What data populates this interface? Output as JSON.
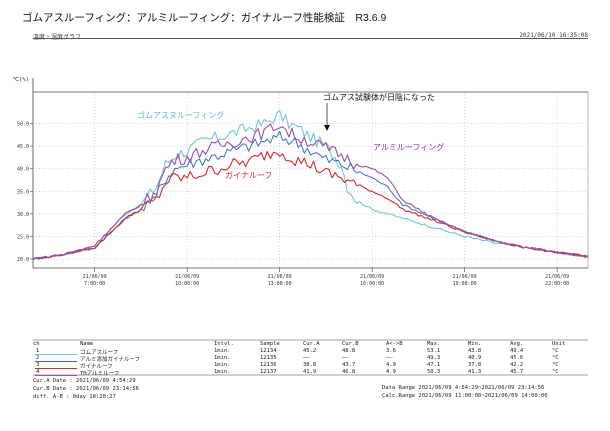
{
  "page_title": "ゴムアスルーフィング：アルミルーフィング：ガイナルーフ性能検証　R3.6.9",
  "graph": {
    "title": "温度・湿度グラフ",
    "timestamp": "2021/06/10 16:35:08",
    "y_unit": "℃(%)"
  },
  "annotations": {
    "gomu_label": "ゴムアスヌルーフィング",
    "alumi_label": "アルミルーフィング",
    "gaina_label": "ガイナルーフ",
    "shade_note": "ゴムアス試験体が日陰になった"
  },
  "colors": {
    "gomu": "#6ec8d6",
    "alumi": "#9b4fa6",
    "gaina": "#d42a2a",
    "alumi_gaina": "#3a6fc4",
    "text_gomu": "#5ab8cc",
    "text_alumi": "#8e3aa0",
    "text_gaina": "#d42a2a"
  },
  "chart_data": {
    "type": "line",
    "ylim": [
      18,
      57
    ],
    "y_ticks": [
      "20.0",
      "25.0",
      "30.0",
      "35.0",
      "40.0",
      "45.0",
      "50.0"
    ],
    "x_range_hours": [
      "2021/06/09 05:00",
      "2021/06/09 23:00"
    ],
    "x_ticks": [
      {
        "date": "21/06/09",
        "time": "7:00:00"
      },
      {
        "date": "21/06/09",
        "time": "10:00:00"
      },
      {
        "date": "21/06/09",
        "time": "13:00:00"
      },
      {
        "date": "21/06/09",
        "time": "16:00:00"
      },
      {
        "date": "21/06/09",
        "time": "19:00:00"
      },
      {
        "date": "21/06/09",
        "time": "22:00:00"
      }
    ],
    "series": [
      {
        "name": "ゴムアスルーフィング",
        "x": [
          5,
          6,
          7,
          8,
          8.5,
          9,
          9.3,
          9.6,
          10,
          10.5,
          11,
          11.5,
          12,
          12.5,
          13,
          13.3,
          13.6,
          14,
          14.5,
          15,
          15.2,
          15.5,
          16,
          17,
          18,
          19,
          20,
          21,
          22,
          23
        ],
        "y": [
          20,
          21,
          23,
          30,
          32,
          36,
          41,
          43,
          44,
          46,
          47,
          48,
          49,
          50,
          52,
          50,
          49,
          47,
          45,
          41,
          36,
          33,
          31,
          29,
          27,
          25,
          23.5,
          22.5,
          21.5,
          20.5
        ]
      },
      {
        "name": "アルミ添加ガイナルーフ",
        "x": [
          5,
          6,
          7,
          8,
          8.5,
          9,
          9.3,
          9.6,
          10,
          10.5,
          11,
          11.5,
          12,
          12.5,
          13,
          13.5,
          14,
          14.5,
          15,
          15.5,
          16,
          16.5,
          17,
          18,
          19,
          20,
          21,
          22,
          23
        ],
        "y": [
          20,
          21,
          22.5,
          29,
          31,
          34,
          38,
          40,
          41,
          42,
          43,
          44,
          45,
          46,
          47,
          46,
          44,
          42,
          41,
          39.5,
          38,
          36,
          32,
          29,
          26,
          24,
          22.5,
          21.5,
          20.5
        ]
      },
      {
        "name": "ガイナルーフ",
        "x": [
          5,
          6,
          7,
          8,
          8.5,
          9,
          9.3,
          9.6,
          10,
          10.5,
          11,
          11.5,
          12,
          12.5,
          13,
          13.5,
          14,
          14.5,
          15,
          15.5,
          16,
          16.5,
          17,
          18,
          19,
          20,
          21,
          22,
          23
        ],
        "y": [
          20,
          21,
          22.5,
          29,
          31,
          33,
          37,
          38,
          38,
          39,
          40,
          41,
          41.5,
          43,
          44,
          42,
          41,
          39,
          38,
          36.5,
          35,
          33.5,
          31,
          28.5,
          26,
          24,
          22.5,
          21.5,
          20.5
        ]
      },
      {
        "name": "THアルミルーフ",
        "x": [
          5,
          6,
          7,
          8,
          8.5,
          9,
          9.3,
          9.6,
          10,
          10.5,
          11,
          11.5,
          12,
          12.5,
          13,
          13.3,
          13.6,
          14,
          14.5,
          15,
          15.5,
          16,
          16.5,
          17,
          18,
          19,
          20,
          21,
          22,
          23
        ],
        "y": [
          20,
          21,
          23,
          30,
          32,
          35,
          40,
          42,
          42.5,
          44,
          45,
          46,
          47,
          48,
          50,
          48,
          47,
          46,
          44.5,
          43,
          41,
          40,
          38,
          33,
          29,
          26,
          24,
          22.5,
          21.5,
          20.5
        ]
      }
    ]
  },
  "table": {
    "headers": [
      "ch",
      "Name",
      "Intvl.",
      "Sample",
      "Cur.A",
      "Cur.B",
      "A<->B",
      "Max.",
      "Min.",
      "Avg.",
      "Unit"
    ],
    "rows": [
      [
        "1",
        "ゴムアスルーフ",
        "1min.",
        "12134",
        "45.2",
        "48.8",
        "3.6",
        "53.1",
        "43.8",
        "49.4",
        "°C"
      ],
      [
        "2",
        "アルミ添加ガイナルーフ",
        "1min.",
        "12135",
        "——",
        "——",
        "——",
        "49.3",
        "40.9",
        "45.6",
        "°C"
      ],
      [
        "3",
        "ガイナルーフ",
        "1min.",
        "12136",
        "38.8",
        "43.7",
        "4.9",
        "47.1",
        "37.8",
        "42.2",
        "°C"
      ],
      [
        "4",
        "THアルミルーフ",
        "1min.",
        "12137",
        "41.9",
        "46.8",
        "4.9",
        "50.3",
        "41.3",
        "45.7",
        "°C"
      ]
    ]
  },
  "footer": {
    "cur_a": "Cur.A Date : 2021/06/09 4:54:29",
    "cur_b": "Cur.B Date : 2021/06/09 23:14:56",
    "diff": "diff. A-B : 0day 18:20:27",
    "data_range": "Data Range 2021/06/09 4:54:29~2021/06/09 23:14:56",
    "calc_range": "Calc.Range 2021/06/09 11:00:00~2021/06/09 14:00:00"
  }
}
